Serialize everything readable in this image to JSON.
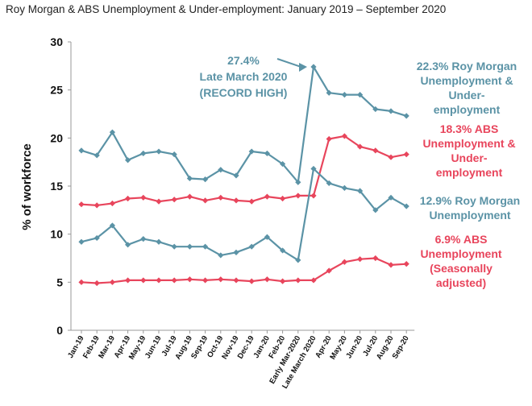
{
  "chart_data": {
    "type": "line",
    "title": "Roy Morgan & ABS Unemployment & Under-employment: January 2019 – September 2020",
    "xlabel": "",
    "ylabel": "% of workforce",
    "ylim": [
      0,
      30
    ],
    "yticks": [
      "0",
      "5",
      "10",
      "15",
      "20",
      "25",
      "30"
    ],
    "grid": false,
    "categories": [
      "Jan-19",
      "Feb-19",
      "Mar-19",
      "Apr-19",
      "May-19",
      "Jun-19",
      "Jul-19",
      "Aug-19",
      "Sep-19",
      "Oct-19",
      "Nov-19",
      "Dec-19",
      "Jan-20",
      "Feb-20",
      "Early Mar-2020",
      "Late March 2020",
      "Apr-20",
      "May-20",
      "Jun-20",
      "Jul-20",
      "Aug-20",
      "Sep-20"
    ],
    "series": [
      {
        "name": "Roy Morgan Unemployment & Under-employment",
        "color": "#5b93a6",
        "values": [
          18.7,
          18.2,
          20.6,
          17.7,
          18.4,
          18.6,
          18.3,
          15.8,
          15.7,
          16.7,
          16.1,
          18.6,
          18.4,
          17.3,
          15.4,
          27.4,
          24.7,
          24.5,
          24.5,
          23.0,
          22.8,
          22.3
        ]
      },
      {
        "name": "ABS Unemployment & Under-employment",
        "color": "#e8455c",
        "values": [
          13.1,
          13.0,
          13.2,
          13.7,
          13.8,
          13.4,
          13.6,
          13.9,
          13.5,
          13.8,
          13.5,
          13.4,
          13.9,
          13.7,
          14.0,
          14.0,
          19.9,
          20.2,
          19.1,
          18.7,
          18.0,
          18.3
        ]
      },
      {
        "name": "Roy Morgan Unemployment",
        "color": "#5b93a6",
        "values": [
          9.2,
          9.6,
          10.9,
          8.9,
          9.5,
          9.2,
          8.7,
          8.7,
          8.7,
          7.8,
          8.1,
          8.7,
          9.7,
          8.3,
          7.3,
          16.8,
          15.3,
          14.8,
          14.5,
          12.5,
          13.8,
          12.9
        ]
      },
      {
        "name": "ABS Unemployment (Seasonally adjusted)",
        "color": "#e8455c",
        "values": [
          5.0,
          4.9,
          5.0,
          5.2,
          5.2,
          5.2,
          5.2,
          5.3,
          5.2,
          5.3,
          5.2,
          5.1,
          5.3,
          5.1,
          5.2,
          5.2,
          6.2,
          7.1,
          7.4,
          7.5,
          6.8,
          6.9
        ]
      }
    ],
    "annotations": {
      "record": {
        "lines": [
          "27.4%",
          "Late March 2020",
          "(RECORD HIGH)"
        ],
        "color": "#5b93a6"
      },
      "rm_under": {
        "lines": [
          "22.3% Roy Morgan",
          "Unemployment &",
          "Under-",
          "employment"
        ],
        "color": "#5b93a6"
      },
      "abs_under": {
        "lines": [
          "18.3% ABS",
          "Unemployment &",
          "Under-",
          "employment"
        ],
        "color": "#e8455c"
      },
      "rm_unemp": {
        "lines": [
          "12.9% Roy Morgan",
          "Unemployment"
        ],
        "color": "#5b93a6"
      },
      "abs_unemp": {
        "lines": [
          "6.9% ABS",
          "Unemployment",
          "(Seasonally",
          "adjusted)"
        ],
        "color": "#e8455c"
      }
    }
  }
}
